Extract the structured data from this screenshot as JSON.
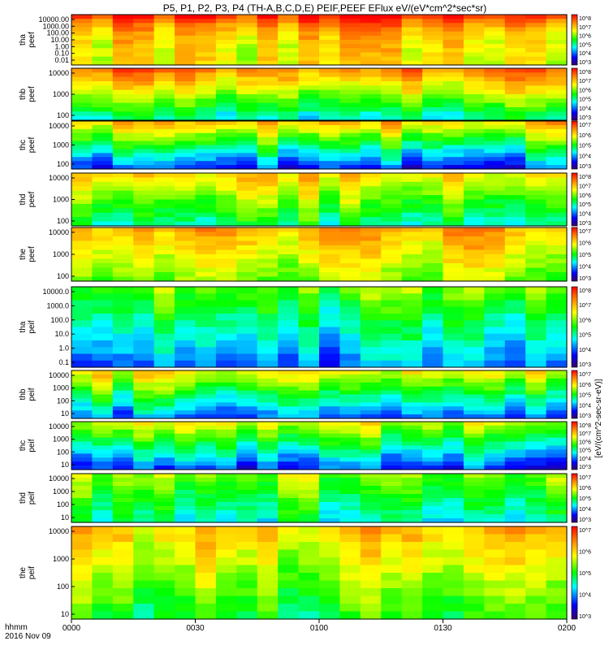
{
  "chart_data": {
    "type": "heatmap",
    "title": "P5, P1, P2, P3, P4 (TH-A,B,C,D,E) PEIF,PEEF EFlux eV/(eV*cm^2*sec*sr)",
    "colorbar_label": "[eV/(cm^2-sec-sr-eV)]",
    "x_axis": {
      "ticks": [
        "0000",
        "0030",
        "0100",
        "0130",
        "0200"
      ],
      "row_label": "hhmm",
      "date_label": "2016 Nov 09"
    },
    "colorbar_ticks": {
      "five": [
        "10^3",
        "10^4",
        "10^5",
        "10^6",
        "10^7"
      ],
      "six": [
        "10^3",
        "10^4",
        "10^5",
        "10^6",
        "10^7",
        "10^8"
      ]
    },
    "panels": [
      {
        "probe": "tha",
        "species": "peef",
        "yticks": [
          "10000.00",
          "1000.00",
          "100.00",
          "10.00",
          "1.00",
          "0.10",
          "0.01"
        ]
      },
      {
        "probe": "thb",
        "species": "peef",
        "yticks": [
          "10000",
          "1000",
          "100"
        ]
      },
      {
        "probe": "thc",
        "species": "peef",
        "yticks": [
          "10000",
          "1000",
          "100"
        ]
      },
      {
        "probe": "thd",
        "species": "peef",
        "yticks": [
          "10000",
          "1000",
          "100"
        ]
      },
      {
        "probe": "the",
        "species": "peef",
        "yticks": [
          "10000",
          "1000",
          "100"
        ]
      },
      {
        "probe": "tha",
        "species": "peif",
        "yticks": [
          "10000.0",
          "1000.0",
          "100.0",
          "10.0",
          "1.0",
          "0.1"
        ]
      },
      {
        "probe": "thb",
        "species": "peif",
        "yticks": [
          "10000",
          "1000",
          "100",
          "10"
        ]
      },
      {
        "probe": "thc",
        "species": "peif",
        "yticks": [
          "10000",
          "1000",
          "100",
          "10"
        ]
      },
      {
        "probe": "thd",
        "species": "peif",
        "yticks": [
          "10000",
          "1000",
          "100",
          "10"
        ]
      },
      {
        "probe": "the",
        "species": "peif",
        "yticks": [
          "10000",
          "1000",
          "100",
          "10"
        ]
      }
    ]
  }
}
